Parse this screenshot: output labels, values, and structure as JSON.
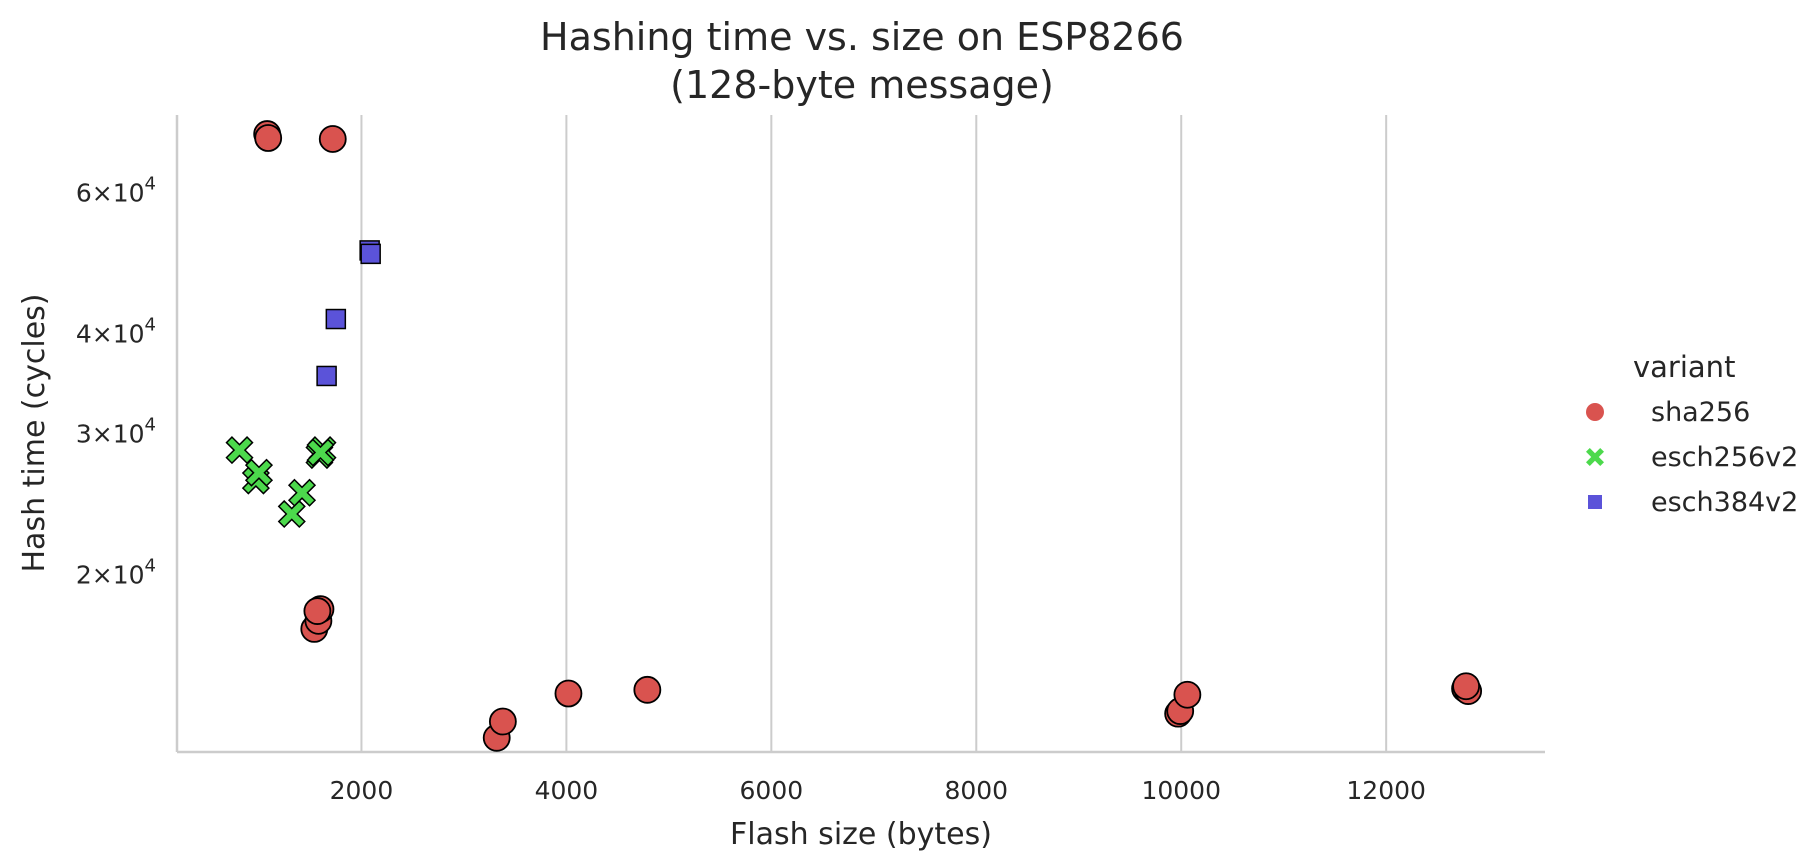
{
  "chart_data": {
    "type": "scatter",
    "title": "Hashing time vs. size on ESP8266",
    "subtitle": "(128-byte message)",
    "xlabel": "Flash size (bytes)",
    "ylabel": "Hash time (cycles)",
    "xlim": [
      200,
      13550
    ],
    "ylim": [
      12000,
      75000
    ],
    "yscale": "log",
    "grid": "x-only",
    "xticks": [
      2000,
      4000,
      6000,
      8000,
      10000,
      12000
    ],
    "xtick_labels": [
      "2000",
      "4000",
      "6000",
      "8000",
      "10000",
      "12000"
    ],
    "yticks": [
      {
        "value": 20000,
        "mantissa": "2",
        "base": "10",
        "exp": "4"
      },
      {
        "value": 30000,
        "mantissa": "3",
        "base": "10",
        "exp": "4"
      },
      {
        "value": 40000,
        "mantissa": "4",
        "base": "10",
        "exp": "4"
      },
      {
        "value": 60000,
        "mantissa": "6",
        "base": "10",
        "exp": "4"
      }
    ],
    "legend": {
      "title": "variant",
      "placement": "right"
    },
    "series": [
      {
        "name": "sha256",
        "marker": "circle",
        "color": "#d9534f",
        "points": [
          [
            1080,
            71000
          ],
          [
            1090,
            70200
          ],
          [
            1720,
            70000
          ],
          [
            1540,
            17100
          ],
          [
            1580,
            17500
          ],
          [
            1600,
            18100
          ],
          [
            1570,
            18000
          ],
          [
            3320,
            12500
          ],
          [
            3380,
            13100
          ],
          [
            4020,
            14200
          ],
          [
            4790,
            14350
          ],
          [
            9970,
            13400
          ],
          [
            9990,
            13500
          ],
          [
            10060,
            14150
          ],
          [
            12770,
            14400
          ],
          [
            12800,
            14300
          ],
          [
            12780,
            14500
          ]
        ]
      },
      {
        "name": "esch256v2",
        "marker": "x",
        "color": "#4cd94c",
        "points": [
          [
            810,
            28600
          ],
          [
            970,
            26200
          ],
          [
            1000,
            26800
          ],
          [
            1320,
            23800
          ],
          [
            1420,
            25300
          ],
          [
            1590,
            28200
          ],
          [
            1620,
            28600
          ],
          [
            1600,
            28400
          ]
        ]
      },
      {
        "name": "esch384v2",
        "marker": "square",
        "color": "#5b53d9",
        "points": [
          [
            2080,
            50800
          ],
          [
            2090,
            50300
          ],
          [
            1750,
            41700
          ],
          [
            1660,
            35400
          ]
        ]
      }
    ]
  }
}
